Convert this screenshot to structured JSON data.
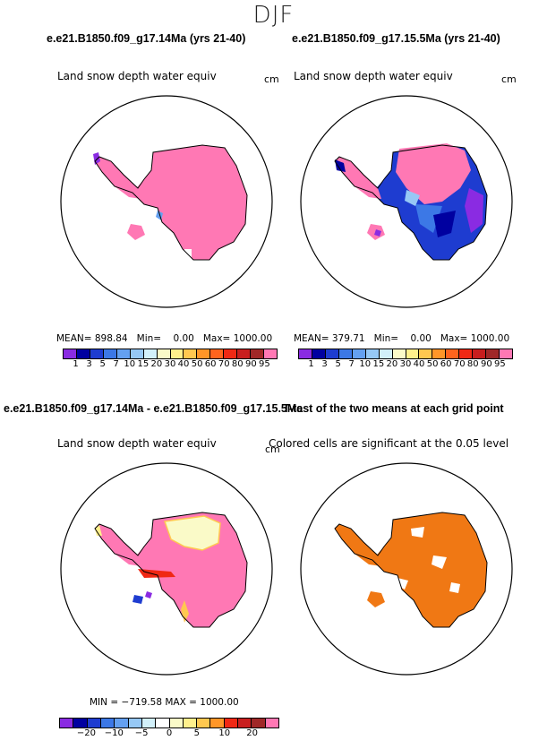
{
  "season": "DJF",
  "panels": [
    {
      "title": "e.e21.B1850.f09_g17.14Ma (yrs 21-40)",
      "subtitle": "Land snow depth water equiv",
      "unit": "cm",
      "stats": {
        "mean_label": "MEAN=",
        "mean": "898.84",
        "min_label": "Min=",
        "min": "0.00",
        "max_label": "Max=",
        "max": "1000.00"
      }
    },
    {
      "title": "e.e21.B1850.f09_g17.15.5Ma (yrs 21-40)",
      "subtitle": "Land snow depth water equiv",
      "unit": "cm",
      "stats": {
        "mean_label": "MEAN=",
        "mean": "379.71",
        "min_label": "Min=",
        "min": "0.00",
        "max_label": "Max=",
        "max": "1000.00"
      }
    },
    {
      "title": "e.e21.B1850.f09_g17.14Ma - e.e21.B1850.f09_g17.15.5Ma",
      "subtitle": "Land snow depth water equiv",
      "unit": "cm",
      "stats_text": "MIN = −719.58  MAX = 1000.00"
    },
    {
      "title": "T-test of the two means at each grid point",
      "subtitle": "Colored cells are significant at the 0.05 level"
    }
  ],
  "colorbar_top": {
    "colors": [
      "#8a2be2",
      "#0000a0",
      "#1e3cd0",
      "#3c78e6",
      "#64a0f0",
      "#96c8f5",
      "#d2f0fa",
      "#fafac8",
      "#fff08c",
      "#ffc850",
      "#ff9628",
      "#ff641e",
      "#f02814",
      "#c81e1e",
      "#a02828",
      "#ff78b4"
    ],
    "labels": [
      "1",
      "3",
      "5",
      "7",
      "10",
      "15",
      "20",
      "30",
      "40",
      "50",
      "60",
      "70",
      "80",
      "90",
      "95"
    ]
  },
  "colorbar_bottom": {
    "colors": [
      "#8a2be2",
      "#0000a0",
      "#1e3cd0",
      "#3c78e6",
      "#64a0f0",
      "#96c8f5",
      "#d2f0fa",
      "#ffffff",
      "#fafac8",
      "#fff08c",
      "#ffc850",
      "#ff9628",
      "#f02814",
      "#c81e1e",
      "#a02828",
      "#ff78b4"
    ],
    "labels": [
      "−20",
      "−10",
      "−5",
      "0",
      "5",
      "10",
      "20"
    ]
  },
  "colors": {
    "snow_high": "#ff78b4",
    "significant": "#f07814",
    "low_blue": "#1e3cd0",
    "purple": "#8a2be2"
  }
}
